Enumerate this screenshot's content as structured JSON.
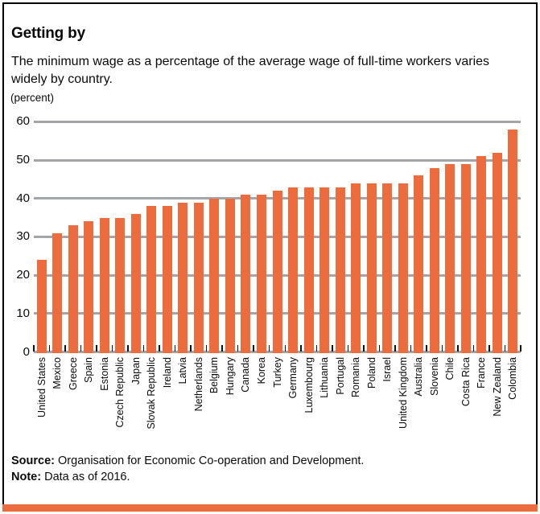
{
  "header": {
    "title": "Getting by",
    "subtitle": "The minimum wage as a percentage of the average wage of full-time workers varies widely by country.",
    "unit_label": "(percent)"
  },
  "chart_data": {
    "type": "bar",
    "title": "Getting by",
    "subtitle": "The minimum wage as a percentage of the average wage of full-time workers varies widely by country.",
    "ylabel": "(percent)",
    "categories": [
      "United States",
      "Mexico",
      "Greece",
      "Spain",
      "Estonia",
      "Czech Republic",
      "Japan",
      "Slovak Republic",
      "Ireland",
      "Latvia",
      "Netherlands",
      "Belgium",
      "Hungary",
      "Canada",
      "Korea",
      "Turkey",
      "Germany",
      "Luxembourg",
      "Lithuania",
      "Portugal",
      "Romania",
      "Poland",
      "Israel",
      "United Kingdom",
      "Australia",
      "Slovenia",
      "Chile",
      "Costa Rica",
      "France",
      "New Zealand",
      "Colombia"
    ],
    "values": [
      24,
      31,
      33,
      34,
      35,
      35,
      36,
      38,
      38,
      39,
      39,
      40,
      40,
      41,
      41,
      42,
      43,
      43,
      43,
      43,
      44,
      44,
      44,
      44,
      46,
      48,
      49,
      49,
      51,
      52,
      58
    ],
    "ylim": [
      0,
      60
    ],
    "yticks": [
      0,
      10,
      20,
      30,
      40,
      50,
      60
    ],
    "grid": "horizontal",
    "legend": "none",
    "bar_color": "#ED6C3D",
    "gridline_color": "#A3A5A8",
    "tick_color": "#111111"
  },
  "footer": {
    "source_label": "Source:",
    "source_text": "Organisation for Economic Co-operation and Development.",
    "note_label": "Note:",
    "note_text": "Data as of 2016."
  },
  "accent_color": "#ED6C3D"
}
